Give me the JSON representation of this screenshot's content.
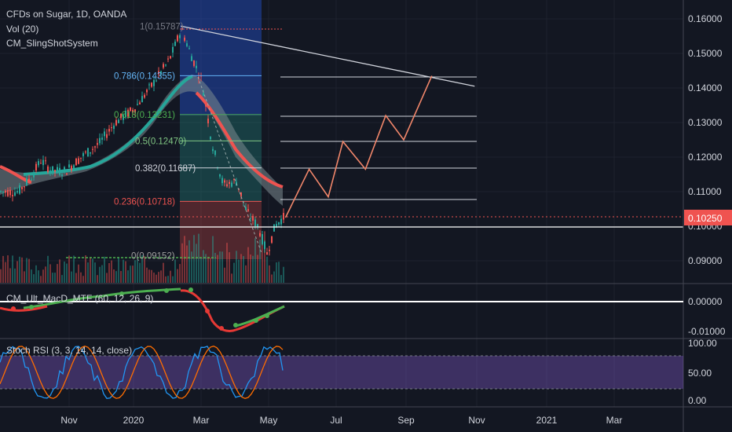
{
  "title": "CFDs on Sugar, 1D, OANDA",
  "volume_label": "Vol (20)",
  "slingshot_label": "CM_SlingShotSystem",
  "macd_label": "CM_Ult_MacD_MTF (60, 12, 26, 9)",
  "rsi_label": "Stoch RSI (3, 3, 14, 14, close)",
  "colors": {
    "bg": "#131722",
    "up": "#26a69a",
    "down": "#ef5350",
    "projection": "#f0866a",
    "rsi_fill": "#7e57c2",
    "trend": "#d1d4dc"
  },
  "price_axis": {
    "ticks": [
      "0.16000",
      "0.15000",
      "0.14000",
      "0.13000",
      "0.12000",
      "0.11000",
      "0.10000",
      "0.09000"
    ],
    "current": "0.10250"
  },
  "macd_axis": {
    "ticks": [
      "0.00000",
      "-0.01000"
    ]
  },
  "rsi_axis": {
    "ticks": [
      "100.00",
      "50.00",
      "0.00"
    ]
  },
  "time_axis": {
    "ticks": [
      "Nov",
      "2020",
      "Mar",
      "May",
      "Jul",
      "Sep",
      "Nov",
      "2021",
      "Mar"
    ]
  },
  "fib_levels": [
    {
      "label": "1(0.15787)"
    },
    {
      "label": "0.786(0.14355)"
    },
    {
      "label": "0.618(0.13231)"
    },
    {
      "label": "0.5(0.12470)"
    },
    {
      "label": "0.382(0.11687)"
    },
    {
      "label": "0.236(0.10718)"
    },
    {
      "label": "0(0.09152)"
    }
  ],
  "chart_data": {
    "type": "line",
    "title": "CFDs on Sugar, 1D, OANDA",
    "last_price": 0.1025,
    "ylim": [
      0.088,
      0.164
    ],
    "fibonacci": [
      {
        "ratio": 1,
        "price": 0.15787
      },
      {
        "ratio": 0.786,
        "price": 0.14355
      },
      {
        "ratio": 0.618,
        "price": 0.13231
      },
      {
        "ratio": 0.5,
        "price": 0.1247
      },
      {
        "ratio": 0.382,
        "price": 0.11687
      },
      {
        "ratio": 0.236,
        "price": 0.10718
      },
      {
        "ratio": 0,
        "price": 0.09152
      }
    ],
    "price_path": [
      {
        "x": "2019-09-20",
        "y": 0.11
      },
      {
        "x": "2019-10-01",
        "y": 0.114
      },
      {
        "x": "2019-10-10",
        "y": 0.119
      },
      {
        "x": "2019-10-20",
        "y": 0.116
      },
      {
        "x": "2019-11-01",
        "y": 0.116
      },
      {
        "x": "2019-11-15",
        "y": 0.12
      },
      {
        "x": "2019-12-01",
        "y": 0.124
      },
      {
        "x": "2019-12-15",
        "y": 0.13
      },
      {
        "x": "2020-01-01",
        "y": 0.134
      },
      {
        "x": "2020-01-15",
        "y": 0.14
      },
      {
        "x": "2020-02-01",
        "y": 0.148
      },
      {
        "x": "2020-02-12",
        "y": 0.157
      },
      {
        "x": "2020-02-20",
        "y": 0.15
      },
      {
        "x": "2020-03-01",
        "y": 0.142
      },
      {
        "x": "2020-03-10",
        "y": 0.124
      },
      {
        "x": "2020-03-20",
        "y": 0.112
      },
      {
        "x": "2020-04-01",
        "y": 0.113
      },
      {
        "x": "2020-04-10",
        "y": 0.104
      },
      {
        "x": "2020-04-20",
        "y": 0.1
      },
      {
        "x": "2020-04-28",
        "y": 0.092
      },
      {
        "x": "2020-05-05",
        "y": 0.1
      },
      {
        "x": "2020-05-12",
        "y": 0.1025
      }
    ],
    "projection_path": [
      {
        "x": "2020-05-15",
        "y": 0.1025
      },
      {
        "x": "2020-06-05",
        "y": 0.1165
      },
      {
        "x": "2020-06-22",
        "y": 0.1085
      },
      {
        "x": "2020-07-05",
        "y": 0.1245
      },
      {
        "x": "2020-07-25",
        "y": 0.1165
      },
      {
        "x": "2020-08-12",
        "y": 0.132
      },
      {
        "x": "2020-08-28",
        "y": 0.125
      },
      {
        "x": "2020-09-22",
        "y": 0.1435
      }
    ],
    "trendline": [
      {
        "x": "2020-02-12",
        "y": 0.1579
      },
      {
        "x": "2020-10-30",
        "y": 0.1405
      }
    ]
  }
}
